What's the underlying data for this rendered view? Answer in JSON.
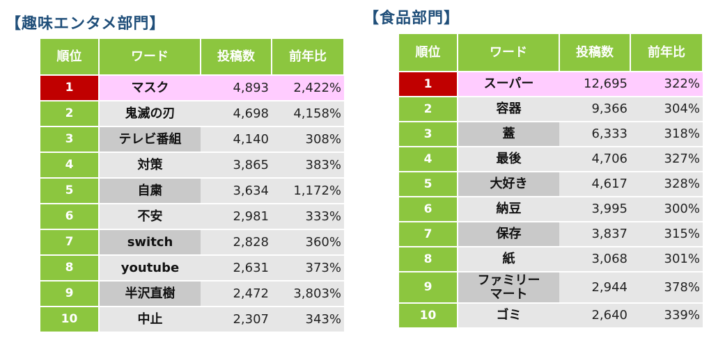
{
  "left": {
    "title": "【趣味エンタメ部門】",
    "headers": [
      "順位",
      "ワード",
      "投稿数",
      "前年比"
    ],
    "rows": [
      {
        "rank": "1",
        "word": "マスク",
        "posts": "4,893",
        "yoy": "2,422%"
      },
      {
        "rank": "2",
        "word": "鬼滅の刃",
        "posts": "4,698",
        "yoy": "4,158%"
      },
      {
        "rank": "3",
        "word": "テレビ番組",
        "posts": "4,140",
        "yoy": "308%"
      },
      {
        "rank": "4",
        "word": "対策",
        "posts": "3,865",
        "yoy": "383%"
      },
      {
        "rank": "5",
        "word": "自粛",
        "posts": "3,634",
        "yoy": "1,172%"
      },
      {
        "rank": "6",
        "word": "不安",
        "posts": "2,981",
        "yoy": "333%"
      },
      {
        "rank": "7",
        "word": "switch",
        "posts": "2,828",
        "yoy": "360%"
      },
      {
        "rank": "8",
        "word": "youtube",
        "posts": "2,631",
        "yoy": "373%"
      },
      {
        "rank": "9",
        "word": "半沢直樹",
        "posts": "2,472",
        "yoy": "3,803%"
      },
      {
        "rank": "10",
        "word": "中止",
        "posts": "2,307",
        "yoy": "343%"
      }
    ]
  },
  "right": {
    "title": "【食品部門】",
    "headers": [
      "順位",
      "ワード",
      "投稿数",
      "前年比"
    ],
    "rows": [
      {
        "rank": "1",
        "word": "スーパー",
        "posts": "12,695",
        "yoy": "322%"
      },
      {
        "rank": "2",
        "word": "容器",
        "posts": "9,366",
        "yoy": "304%"
      },
      {
        "rank": "3",
        "word": "蓋",
        "posts": "6,333",
        "yoy": "318%"
      },
      {
        "rank": "4",
        "word": "最後",
        "posts": "4,706",
        "yoy": "327%"
      },
      {
        "rank": "5",
        "word": "大好き",
        "posts": "4,617",
        "yoy": "328%"
      },
      {
        "rank": "6",
        "word": "納豆",
        "posts": "3,995",
        "yoy": "300%"
      },
      {
        "rank": "7",
        "word": "保存",
        "posts": "3,837",
        "yoy": "315%"
      },
      {
        "rank": "8",
        "word": "紙",
        "posts": "3,068",
        "yoy": "301%"
      },
      {
        "rank": "9",
        "word": "ファミリー\nマート",
        "posts": "2,944",
        "yoy": "378%"
      },
      {
        "rank": "10",
        "word": "ゴミ",
        "posts": "2,640",
        "yoy": "339%"
      }
    ]
  },
  "colors": {
    "header_green": "#8cc63f",
    "first_rank_red": "#c00000",
    "first_row_pink": "#ffccff",
    "title_blue": "#1f4e79"
  }
}
